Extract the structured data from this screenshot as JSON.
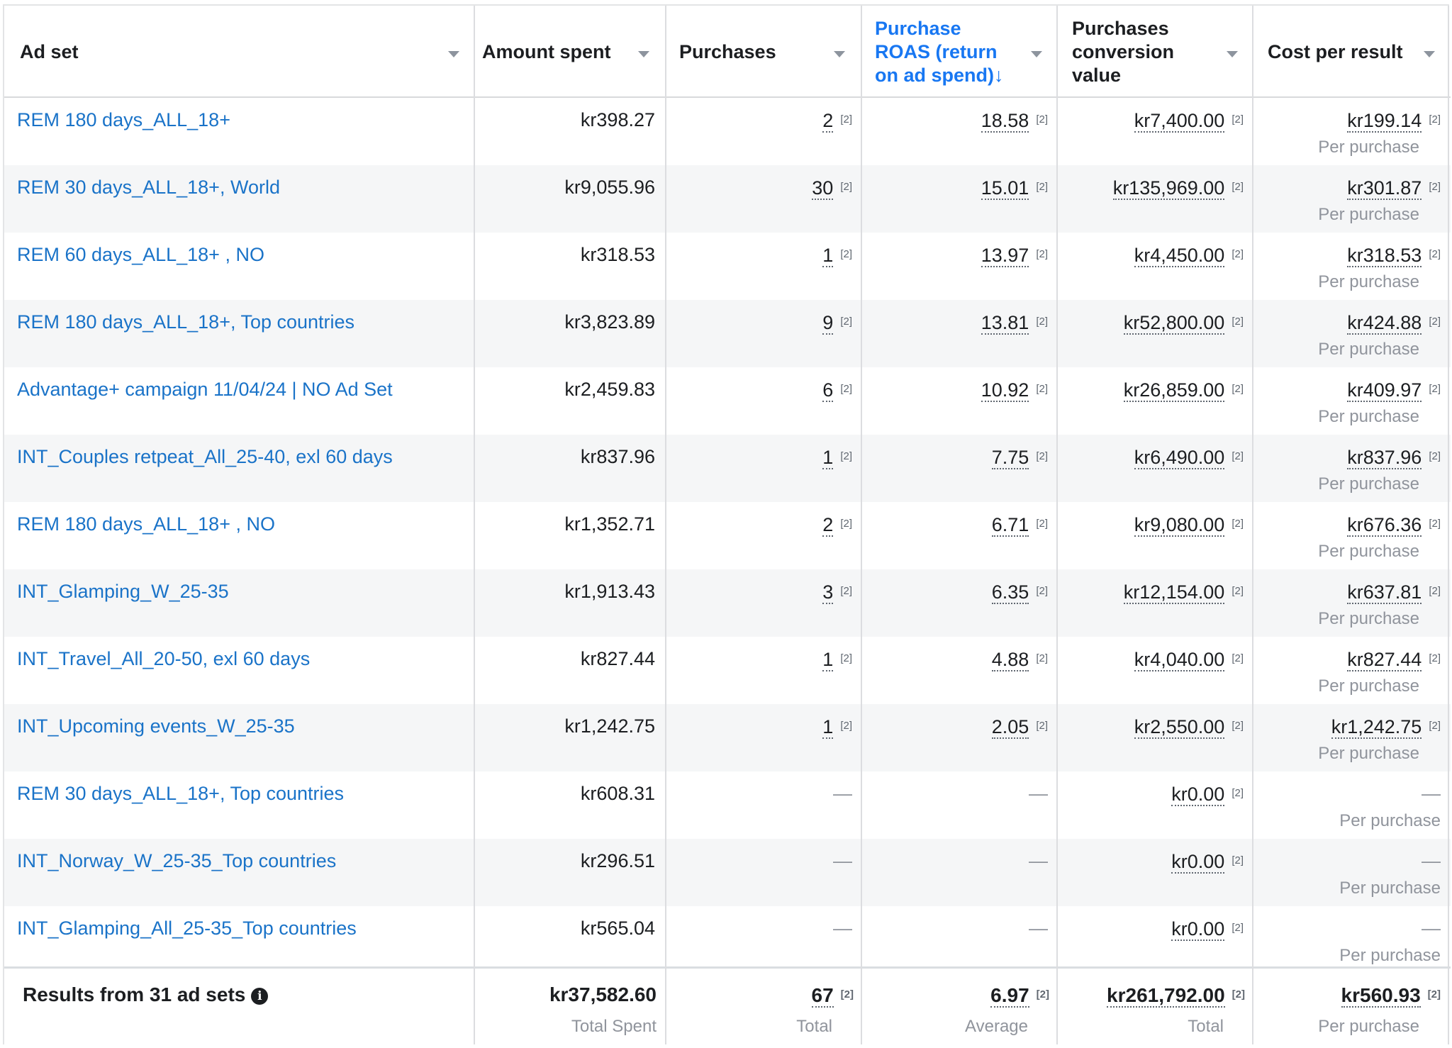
{
  "columns": {
    "ad_set": "Ad set",
    "amount_spent": "Amount spent",
    "purchases": "Purchases",
    "roas": "Purchase\nROAS (return\non ad spend)",
    "roas_arrow": "↓",
    "conversion_value": "Purchases\nconversion\nvalue",
    "cost_per_result": "Cost per result"
  },
  "footnote": "[2]",
  "dash": "—",
  "rows": [
    {
      "name": "REM 180 days_ALL_18+",
      "spent": "kr398.27",
      "purchases": "2",
      "roas": "18.58",
      "value": "kr7,400.00",
      "cost": "kr199.14",
      "cost_sub": "Per purchase"
    },
    {
      "name": "REM 30 days_ALL_18+, World",
      "spent": "kr9,055.96",
      "purchases": "30",
      "roas": "15.01",
      "value": "kr135,969.00",
      "cost": "kr301.87",
      "cost_sub": "Per purchase"
    },
    {
      "name": "REM 60 days_ALL_18+ , NO",
      "spent": "kr318.53",
      "purchases": "1",
      "roas": "13.97",
      "value": "kr4,450.00",
      "cost": "kr318.53",
      "cost_sub": "Per purchase"
    },
    {
      "name": "REM 180 days_ALL_18+, Top countries",
      "spent": "kr3,823.89",
      "purchases": "9",
      "roas": "13.81",
      "value": "kr52,800.00",
      "cost": "kr424.88",
      "cost_sub": "Per purchase"
    },
    {
      "name": "Advantage+ campaign 11/04/24 | NO Ad Set",
      "spent": "kr2,459.83",
      "purchases": "6",
      "roas": "10.92",
      "value": "kr26,859.00",
      "cost": "kr409.97",
      "cost_sub": "Per purchase"
    },
    {
      "name": "INT_Couples retpeat_All_25-40, exl 60 days",
      "spent": "kr837.96",
      "purchases": "1",
      "roas": "7.75",
      "value": "kr6,490.00",
      "cost": "kr837.96",
      "cost_sub": "Per purchase"
    },
    {
      "name": "REM 180 days_ALL_18+ , NO",
      "spent": "kr1,352.71",
      "purchases": "2",
      "roas": "6.71",
      "value": "kr9,080.00",
      "cost": "kr676.36",
      "cost_sub": "Per purchase"
    },
    {
      "name": "INT_Glamping_W_25-35",
      "spent": "kr1,913.43",
      "purchases": "3",
      "roas": "6.35",
      "value": "kr12,154.00",
      "cost": "kr637.81",
      "cost_sub": "Per purchase"
    },
    {
      "name": "INT_Travel_All_20-50, exl 60 days",
      "spent": "kr827.44",
      "purchases": "1",
      "roas": "4.88",
      "value": "kr4,040.00",
      "cost": "kr827.44",
      "cost_sub": "Per purchase"
    },
    {
      "name": "INT_Upcoming events_W_25-35",
      "spent": "kr1,242.75",
      "purchases": "1",
      "roas": "2.05",
      "value": "kr2,550.00",
      "cost": "kr1,242.75",
      "cost_sub": "Per purchase"
    },
    {
      "name": "REM 30 days_ALL_18+, Top countries",
      "spent": "kr608.31",
      "purchases": "",
      "roas": "",
      "value": "kr0.00",
      "cost": "",
      "cost_sub": "Per purchase"
    },
    {
      "name": "INT_Norway_W_25-35_Top countries",
      "spent": "kr296.51",
      "purchases": "",
      "roas": "",
      "value": "kr0.00",
      "cost": "",
      "cost_sub": "Per purchase"
    },
    {
      "name": "INT_Glamping_All_25-35_Top countries",
      "spent": "kr565.04",
      "purchases": "",
      "roas": "",
      "value": "kr0.00",
      "cost": "",
      "cost_sub": "Per purchase"
    }
  ],
  "footer": {
    "label": "Results from 31 ad sets",
    "spent": "kr37,582.60",
    "spent_sub": "Total Spent",
    "purchases": "67",
    "purchases_sub": "Total",
    "roas": "6.97",
    "roas_sub": "Average",
    "value": "kr261,792.00",
    "value_sub": "Total",
    "cost": "kr560.93",
    "cost_sub": "Per purchase"
  }
}
